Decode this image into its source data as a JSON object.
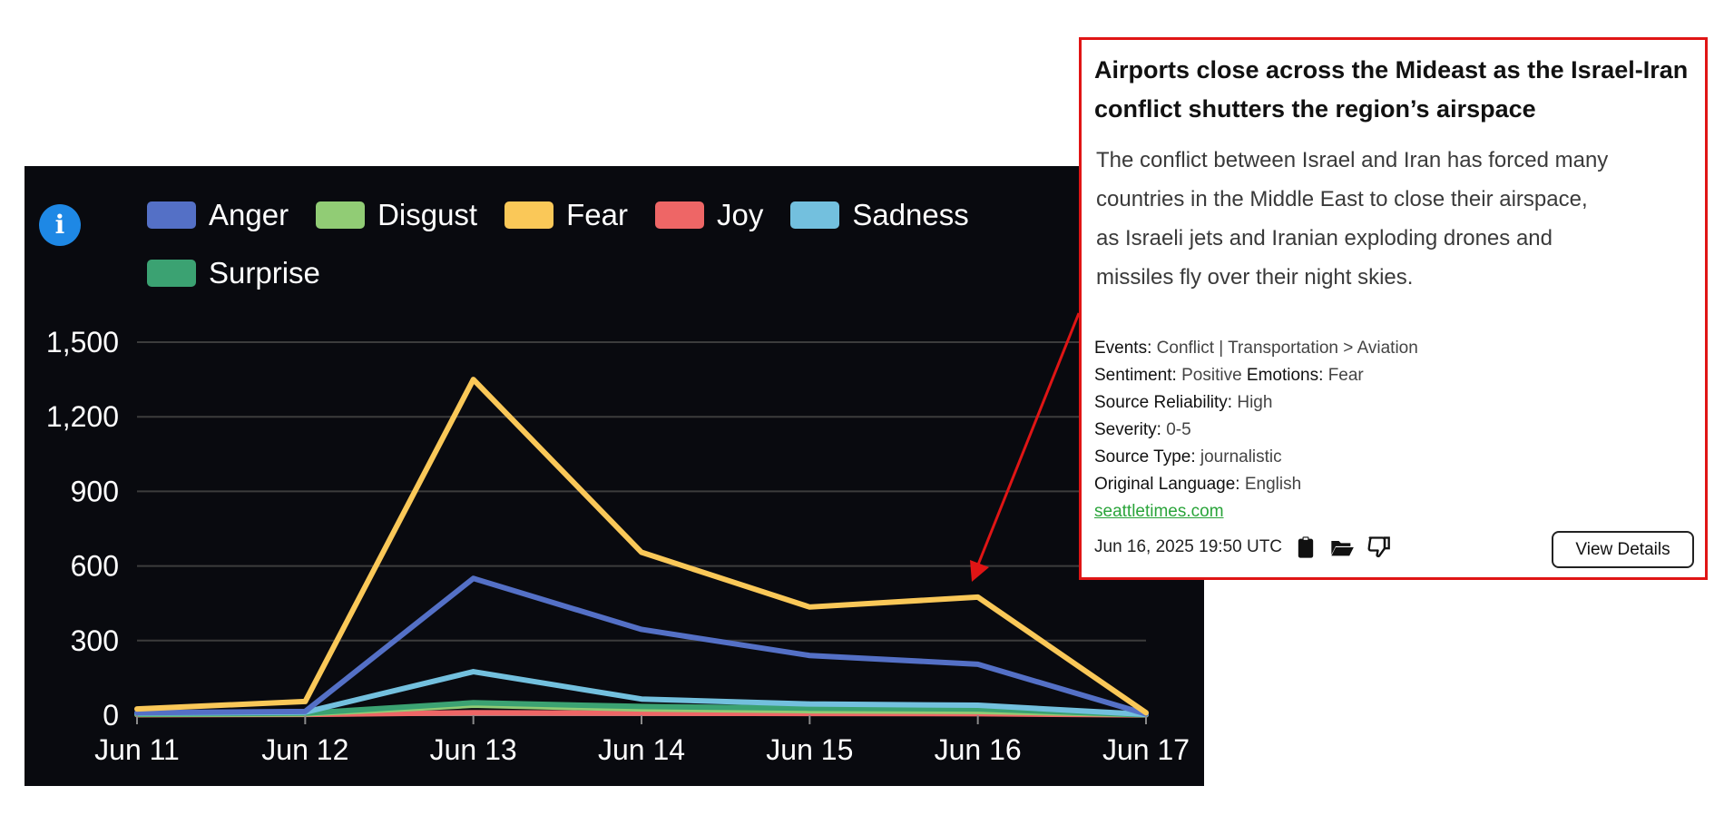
{
  "chart_data": {
    "type": "line",
    "title": "",
    "xlabel": "",
    "ylabel": "",
    "categories": [
      "Jun 11",
      "Jun 12",
      "Jun 13",
      "Jun 14",
      "Jun 15",
      "Jun 16",
      "Jun 17"
    ],
    "y_ticks": [
      "0",
      "300",
      "600",
      "900",
      "1,200",
      "1,500"
    ],
    "y_tick_values": [
      0,
      300,
      600,
      900,
      1200,
      1500
    ],
    "ylim": [
      0,
      1500
    ],
    "grid": true,
    "legend_position": "top-left",
    "series": [
      {
        "name": "Anger",
        "color": "#5470c6",
        "values": [
          10,
          15,
          550,
          345,
          240,
          205,
          5
        ]
      },
      {
        "name": "Disgust",
        "color": "#91cc75",
        "values": [
          3,
          5,
          40,
          25,
          18,
          15,
          2
        ]
      },
      {
        "name": "Fear",
        "color": "#fac858",
        "values": [
          25,
          55,
          1350,
          655,
          435,
          475,
          10
        ]
      },
      {
        "name": "Joy",
        "color": "#ee6666",
        "values": [
          2,
          3,
          10,
          8,
          7,
          6,
          1
        ]
      },
      {
        "name": "Sadness",
        "color": "#73c0de",
        "values": [
          8,
          12,
          175,
          65,
          45,
          40,
          3
        ]
      },
      {
        "name": "Surprise",
        "color": "#3ba272",
        "values": [
          5,
          8,
          50,
          35,
          28,
          25,
          2
        ]
      }
    ]
  },
  "article": {
    "title": "Airports close across the Mideast as the Israel-Iran conflict shutters the region’s airspace",
    "summary": "The conflict between Israel and Iran has forced many countries in the Middle East to close their airspace, as Israeli jets and Iranian exploding drones and missiles fly over their night skies.",
    "events_label": "Events:",
    "events_value": "Conflict | Transportation > Aviation",
    "sentiment_label": "Sentiment:",
    "sentiment_value": "Positive",
    "emotions_label": "Emotions:",
    "emotions_value": "Fear",
    "reliability_label": "Source Reliability:",
    "reliability_value": "High",
    "severity_label": "Severity:",
    "severity_value": "0-5",
    "source_type_label": "Source Type:",
    "source_type_value": "journalistic",
    "language_label": "Original Language:",
    "language_value": "English",
    "source_link": "seattletimes.com",
    "timestamp": "Jun 16, 2025 19:50 UTC",
    "view_details_label": "View Details"
  },
  "icons": {
    "info": "info-icon",
    "copy": "clipboard-icon",
    "folder": "folder-open-icon",
    "dislike": "thumbs-down-icon"
  },
  "colors": {
    "chart_background": "#090a0f",
    "highlight_border": "#e01515",
    "link": "#2aa43a",
    "info_button": "#1e88e5"
  }
}
